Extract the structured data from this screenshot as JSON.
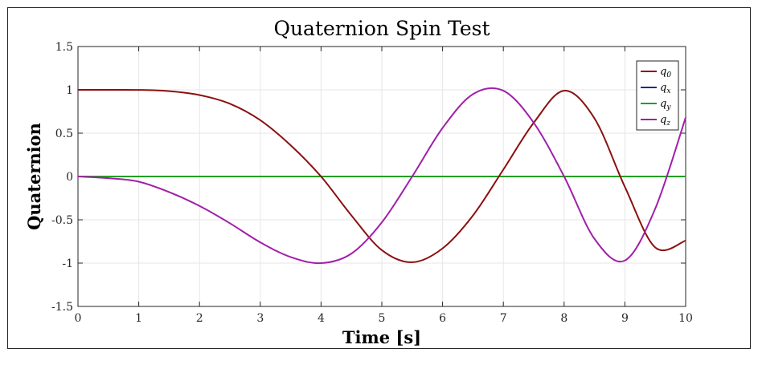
{
  "chart_data": {
    "type": "line",
    "title": "Quaternion Spin Test",
    "xlabel": "Time [s]",
    "ylabel": "Quaternion",
    "xlim": [
      0,
      10
    ],
    "ylim": [
      -1.5,
      1.5
    ],
    "x_ticks": [
      "0",
      "1",
      "2",
      "3",
      "4",
      "5",
      "6",
      "7",
      "8",
      "9",
      "10"
    ],
    "y_ticks": [
      "1.5",
      "1",
      "0.5",
      "0",
      "-0.5",
      "-1",
      "-1.5"
    ],
    "grid": true,
    "legend_position": "top-right",
    "x": [
      0,
      0.5,
      1,
      1.5,
      2,
      2.5,
      3,
      3.5,
      4,
      4.5,
      5,
      5.5,
      6,
      6.5,
      7,
      7.5,
      8,
      8.5,
      9,
      9.5,
      10
    ],
    "series": [
      {
        "name": "q",
        "subscript": "0",
        "color": "#8B1010",
        "values": [
          1.0,
          1.0,
          0.999,
          0.985,
          0.94,
          0.84,
          0.65,
          0.36,
          0.0,
          -0.45,
          -0.85,
          -0.99,
          -0.83,
          -0.45,
          0.08,
          0.62,
          0.99,
          0.67,
          -0.12,
          -0.82,
          -0.74
        ]
      },
      {
        "name": "q",
        "subscript": "x",
        "color": "#1B2D8A",
        "values": [
          0,
          0,
          0,
          0,
          0,
          0,
          0,
          0,
          0,
          0,
          0,
          0,
          0,
          0,
          0,
          0,
          0,
          0,
          0,
          0,
          0
        ]
      },
      {
        "name": "q",
        "subscript": "y",
        "color": "#22A022",
        "values": [
          0,
          0,
          0,
          0,
          0,
          0,
          0,
          0,
          0,
          0,
          0,
          0,
          0,
          0,
          0,
          0,
          0,
          0,
          0,
          0,
          0
        ]
      },
      {
        "name": "q",
        "subscript": "z",
        "color": "#A020A8",
        "values": [
          0.0,
          -0.02,
          -0.06,
          -0.18,
          -0.34,
          -0.54,
          -0.76,
          -0.93,
          -1.0,
          -0.89,
          -0.53,
          0.0,
          0.56,
          0.95,
          0.99,
          0.62,
          0.0,
          -0.72,
          -0.97,
          -0.37,
          0.68
        ]
      }
    ]
  }
}
